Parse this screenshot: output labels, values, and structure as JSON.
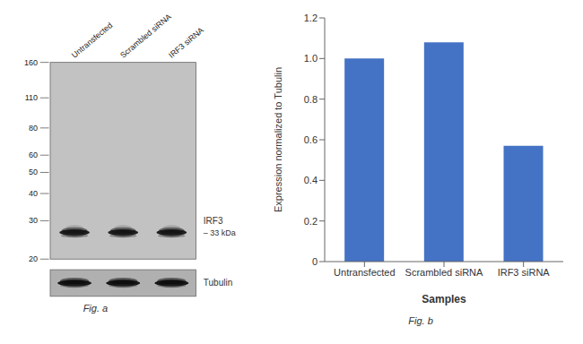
{
  "chart_data": [
    {
      "type": "blot",
      "categories": [
        "Untransfected",
        "Scrambled siRNA",
        "IRF3 siRNA"
      ],
      "ylim": [
        20,
        160
      ],
      "yticks": [
        160,
        110,
        80,
        60,
        50,
        40,
        30,
        20
      ],
      "log": "y",
      "annotations": [
        "IRF3",
        "– 33 kDa",
        "Tubulin",
        "Fig. a"
      ]
    },
    {
      "type": "bar",
      "categories": [
        "Untransfected",
        "Scrambled siRNA",
        "IRF3 siRNA"
      ],
      "values": [
        1.0,
        1.08,
        0.57
      ],
      "color": "#4472c4",
      "xlabel": "Samples",
      "ylabel": "Expression  normalized to Tubulin",
      "ylim": [
        0,
        1.2
      ],
      "yticks": [
        0,
        0.2,
        0.4,
        0.6,
        0.8,
        {
          "value": 1,
          "label": "1.0"
        },
        1.2
      ],
      "annotations": [
        "Fig. b"
      ]
    }
  ]
}
